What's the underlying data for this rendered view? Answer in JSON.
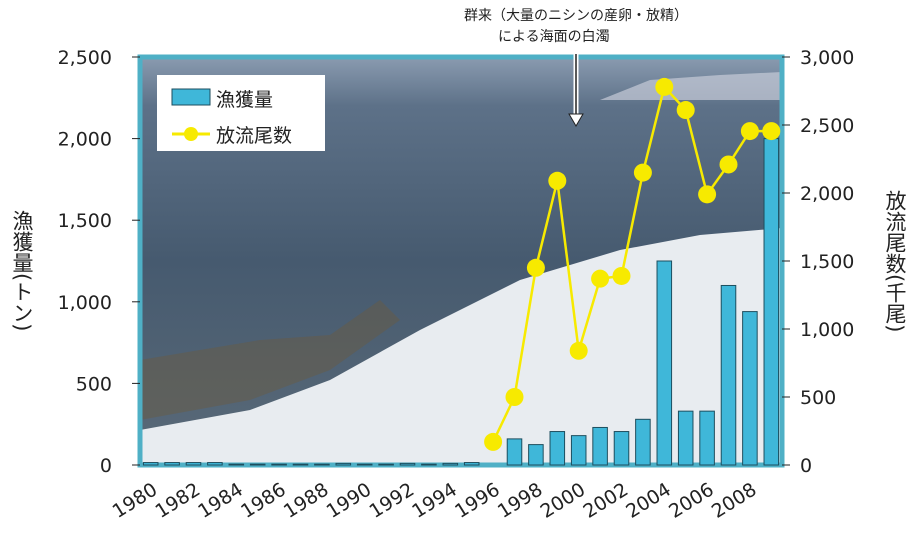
{
  "chart_data": {
    "type": "bar_line",
    "categories": [
      "1980",
      null,
      "1982",
      null,
      "1984",
      null,
      "1986",
      null,
      "1988",
      null,
      "1990",
      null,
      "1992",
      null,
      "1994",
      null,
      "1996",
      null,
      "1998",
      null,
      "2000",
      null,
      "2002",
      null,
      "2004",
      null,
      "2006",
      null,
      "2008",
      null
    ],
    "series": [
      {
        "name": "漁獲量",
        "color": "#3fb7d9",
        "type": "bar",
        "values": [
          15,
          15,
          15,
          15,
          5,
          5,
          5,
          5,
          5,
          10,
          5,
          5,
          10,
          5,
          10,
          15,
          0,
          160,
          125,
          205,
          180,
          230,
          205,
          280,
          1250,
          330,
          330,
          1100,
          940,
          2000
        ]
      },
      {
        "name": "放流尾数",
        "color": "#f7ea00",
        "type": "line",
        "axis": "y2",
        "values": [
          null,
          null,
          null,
          null,
          null,
          null,
          null,
          null,
          null,
          null,
          null,
          null,
          null,
          null,
          null,
          null,
          170,
          500,
          1450,
          2090,
          840,
          1370,
          1390,
          2150,
          2780,
          2610,
          1990,
          2210,
          2455,
          2455
        ]
      }
    ],
    "ylabel": "漁獲量(トン)",
    "y2label": "放流尾数(千尾)",
    "annotations": [
      "群来（大量のニシンの産卵・放精）",
      "による海面の白濁"
    ],
    "ylim": [
      0,
      2500
    ],
    "yticks": [
      0,
      500,
      {
        "value": 1000,
        "label": "1,000"
      },
      {
        "value": 1500,
        "label": "1,500"
      },
      {
        "value": 2000,
        "label": "2,000"
      },
      {
        "value": 2500,
        "label": "2,500"
      }
    ],
    "y2lim": [
      0,
      3000
    ],
    "y2ticks": [
      0,
      500,
      {
        "value": 1000,
        "label": "1,000"
      },
      {
        "value": 1500,
        "label": "1,500"
      },
      {
        "value": 2000,
        "label": "2,000"
      },
      {
        "value": 2500,
        "label": "2,500"
      },
      {
        "value": 3000,
        "label": "3,000"
      }
    ],
    "legend": "upper left"
  }
}
